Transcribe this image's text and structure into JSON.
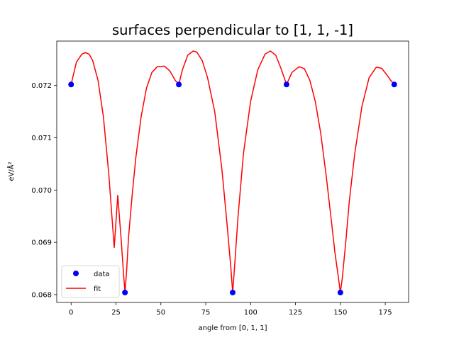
{
  "chart_data": {
    "type": "scatter",
    "title": "surfaces perpendicular to [1, 1, -1]",
    "xlabel": "angle from [0, 1, 1]",
    "ylabel": "eV/Å²",
    "xlim": [
      -8,
      188
    ],
    "ylim": [
      0.06785,
      0.07285
    ],
    "xticks": [
      0,
      25,
      50,
      75,
      100,
      125,
      150,
      175
    ],
    "yticks": [
      0.068,
      0.069,
      0.07,
      0.071,
      0.072
    ],
    "ytick_decimals": 3,
    "grid": false,
    "legend_position": "lower-left",
    "series": [
      {
        "name": "data",
        "kind": "markers",
        "color": "#0000ff",
        "x": [
          0,
          30,
          60,
          90,
          120,
          150,
          180
        ],
        "y": [
          0.07202,
          0.06804,
          0.07202,
          0.06804,
          0.07202,
          0.06804,
          0.07202
        ]
      },
      {
        "name": "fit",
        "kind": "line",
        "color": "#ff0000",
        "x": [
          0,
          3,
          6,
          8,
          10,
          12,
          15,
          18,
          21,
          24,
          26,
          28,
          29,
          30,
          31,
          32,
          34,
          36,
          39,
          42,
          45,
          48,
          52,
          55,
          58,
          60,
          62,
          65,
          68,
          70,
          73,
          76,
          80,
          84,
          87,
          89,
          90,
          91,
          93,
          96,
          100,
          104,
          108,
          111,
          114,
          117,
          120,
          123,
          127,
          130,
          133,
          136,
          139,
          142,
          145,
          147,
          149,
          150,
          151,
          153,
          155,
          158,
          162,
          166,
          170,
          173,
          176,
          178,
          180
        ],
        "y": [
          0.07202,
          0.07245,
          0.0726,
          0.07263,
          0.0726,
          0.07248,
          0.0721,
          0.0714,
          0.0703,
          0.0689,
          0.0699,
          0.069,
          0.0685,
          0.06804,
          0.0685,
          0.0691,
          0.0699,
          0.0706,
          0.0714,
          0.07195,
          0.07225,
          0.07236,
          0.07237,
          0.07228,
          0.0721,
          0.07202,
          0.0723,
          0.07258,
          0.07266,
          0.07264,
          0.07248,
          0.07215,
          0.0715,
          0.0704,
          0.0693,
          0.0685,
          0.06804,
          0.0685,
          0.0695,
          0.0707,
          0.0717,
          0.0723,
          0.0726,
          0.07266,
          0.07258,
          0.07232,
          0.07202,
          0.07225,
          0.07236,
          0.07232,
          0.0721,
          0.0717,
          0.0711,
          0.0703,
          0.0694,
          0.0688,
          0.0683,
          0.06804,
          0.0683,
          0.069,
          0.0698,
          0.0707,
          0.0716,
          0.07215,
          0.07235,
          0.07233,
          0.0722,
          0.0721,
          0.07202
        ]
      }
    ]
  }
}
